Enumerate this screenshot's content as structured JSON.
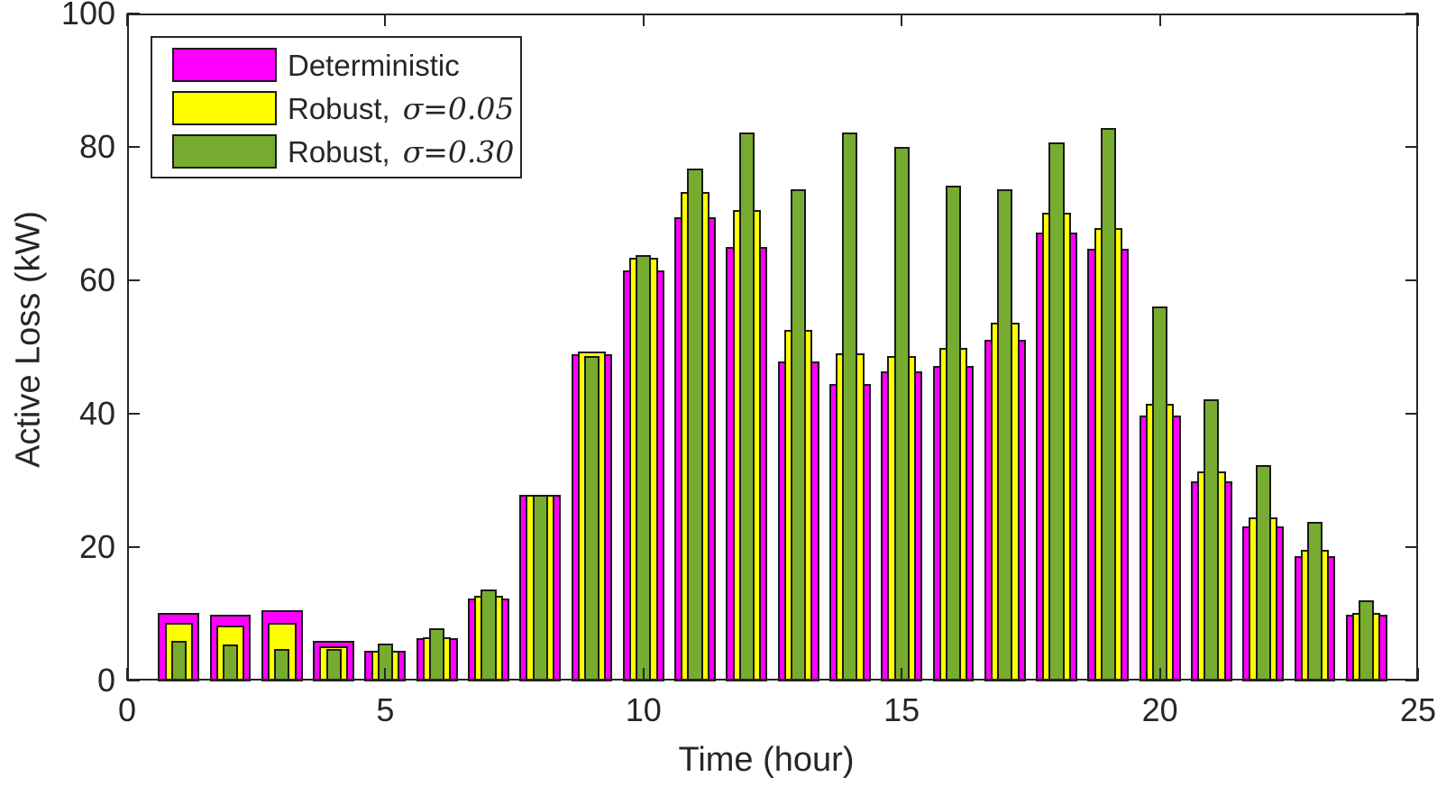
{
  "chart_data": {
    "type": "bar",
    "title": "",
    "xlabel": "Time (hour)",
    "ylabel": "Active Loss (kW)",
    "xlim": [
      0,
      25
    ],
    "ylim": [
      0,
      100
    ],
    "xticks": [
      0,
      5,
      10,
      15,
      20,
      25
    ],
    "yticks": [
      0,
      20,
      40,
      60,
      80,
      100
    ],
    "grid": false,
    "legend_position": "upper left",
    "layout": "overlaid bars centered per hour (widest = Deterministic, middle = σ=0.05, narrowest = σ=0.30)",
    "categories": [
      1,
      2,
      3,
      4,
      5,
      6,
      7,
      8,
      9,
      10,
      11,
      12,
      13,
      14,
      15,
      16,
      17,
      18,
      19,
      20,
      21,
      22,
      23,
      24
    ],
    "series": [
      {
        "name": "Deterministic",
        "label_prefix": "Deterministic",
        "sigma": "",
        "color": "#FF00FF",
        "width_frac": 0.8,
        "values": [
          10.2,
          9.8,
          10.5,
          6.0,
          4.4,
          6.3,
          12.3,
          27.9,
          48.9,
          61.5,
          69.5,
          65.0,
          47.9,
          44.4,
          46.3,
          47.2,
          51.1,
          67.2,
          64.7,
          39.7,
          29.8,
          23.1,
          18.7,
          9.8
        ]
      },
      {
        "name": "Robust, σ=0.05",
        "label_prefix": "Robust,",
        "sigma": "σ=0.05",
        "color": "#FFFF00",
        "width_frac": 0.55,
        "values": [
          8.7,
          8.2,
          8.7,
          5.2,
          4.4,
          6.5,
          12.7,
          27.9,
          49.3,
          63.4,
          73.3,
          70.5,
          52.6,
          49.1,
          48.7,
          49.8,
          53.6,
          70.1,
          67.9,
          41.5,
          31.3,
          24.4,
          19.6,
          10.1
        ]
      },
      {
        "name": "Robust, σ=0.30",
        "label_prefix": "Robust,",
        "sigma": "σ=0.30",
        "color": "#77AC30",
        "width_frac": 0.3,
        "values": [
          5.9,
          5.4,
          4.7,
          4.7,
          5.6,
          7.8,
          13.6,
          27.9,
          48.6,
          63.8,
          76.8,
          82.2,
          73.6,
          82.2,
          80.0,
          74.2,
          73.6,
          80.7,
          82.8,
          56.1,
          42.2,
          32.3,
          23.8,
          12.0
        ]
      }
    ]
  },
  "axes": {
    "xlabel": "Time (hour)",
    "ylabel": "Active Loss (kW)",
    "xtick_labels": [
      "0",
      "5",
      "10",
      "15",
      "20",
      "25"
    ],
    "ytick_labels": [
      "0",
      "20",
      "40",
      "60",
      "80",
      "100"
    ]
  },
  "legend": {
    "items": [
      {
        "prefix": "Deterministic",
        "sigma": ""
      },
      {
        "prefix": "Robust,",
        "sigma": "σ=0.05"
      },
      {
        "prefix": "Robust,",
        "sigma": "σ=0.30"
      }
    ]
  }
}
